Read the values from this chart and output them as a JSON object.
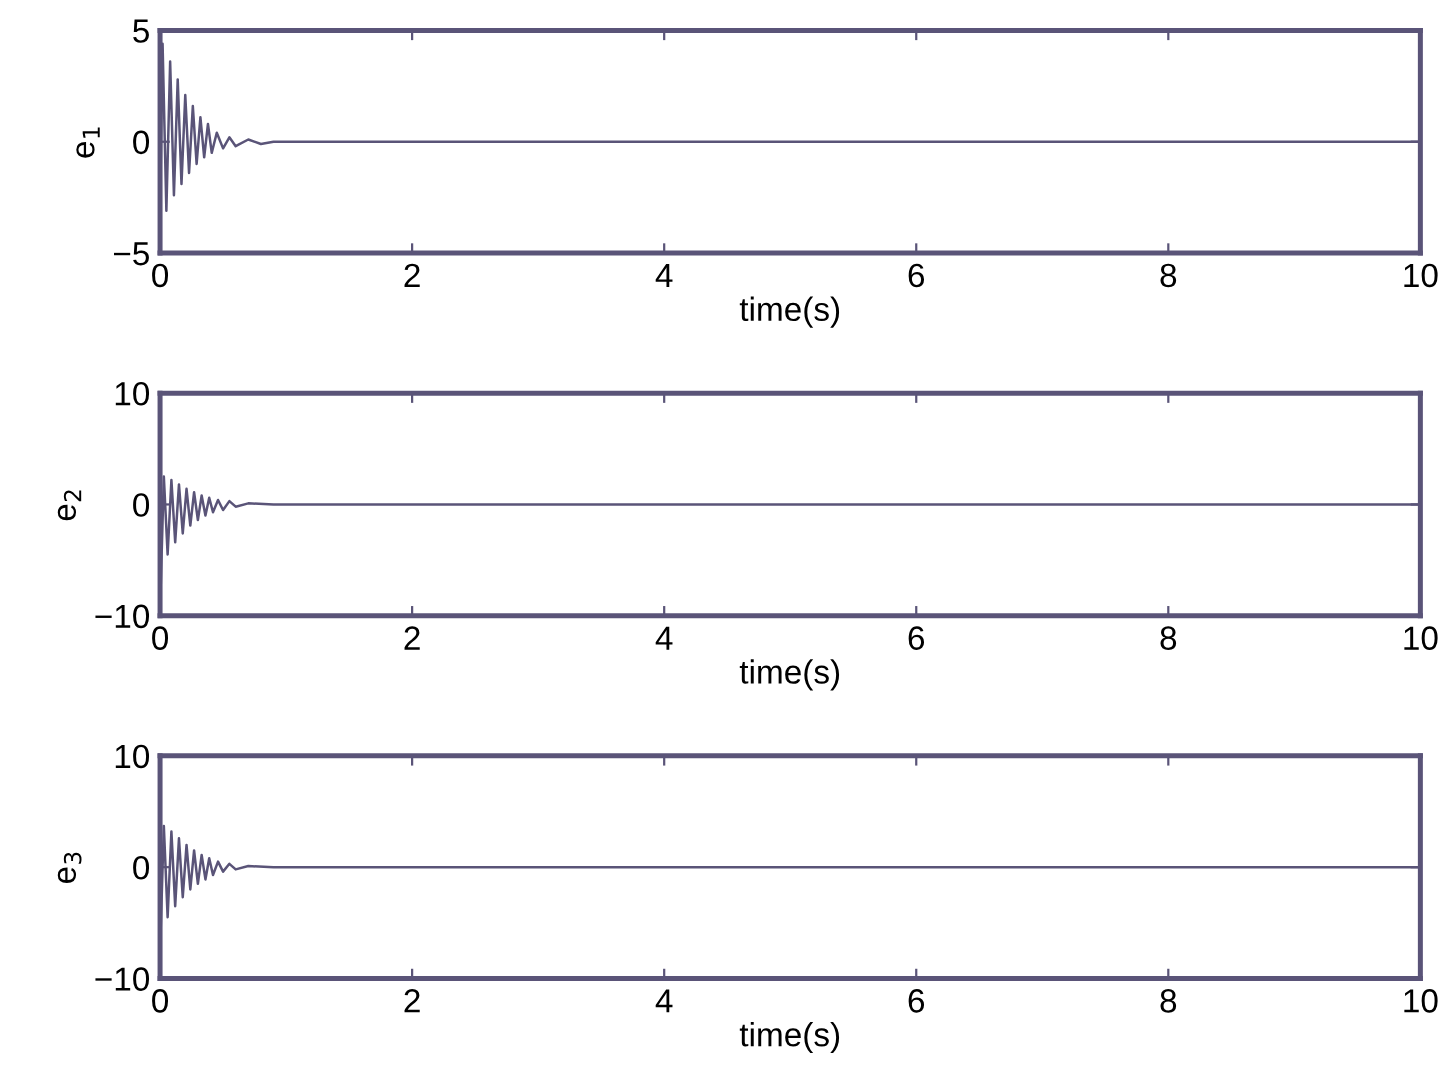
{
  "chart_data": [
    {
      "type": "line",
      "xlabel": "time(s)",
      "ylabel": "e$_{1}$",
      "xlim": [
        0,
        10
      ],
      "ylim": [
        -5,
        5
      ],
      "xticks": [
        0,
        2,
        4,
        6,
        8,
        10
      ],
      "yticks": [
        -5,
        0,
        5
      ],
      "grid": false,
      "marker": "none",
      "line_style": "solid",
      "series": [
        {
          "color": "#5a5478",
          "x": [
            0,
            0.02,
            0.05,
            0.08,
            0.11,
            0.14,
            0.17,
            0.2,
            0.23,
            0.26,
            0.29,
            0.32,
            0.35,
            0.38,
            0.41,
            0.45,
            0.5,
            0.55,
            0.6,
            0.7,
            0.8,
            0.9,
            1.0,
            1.2,
            10
          ],
          "values": [
            -3.2,
            4.4,
            -3.1,
            3.6,
            -2.4,
            2.8,
            -1.9,
            2.1,
            -1.4,
            1.6,
            -1.0,
            1.1,
            -0.7,
            0.8,
            -0.5,
            0.4,
            -0.3,
            0.2,
            -0.2,
            0.1,
            -0.1,
            0.0,
            0,
            0,
            0
          ]
        }
      ]
    },
    {
      "type": "line",
      "xlabel": "time(s)",
      "ylabel": "e$_{2}$",
      "xlim": [
        0,
        10
      ],
      "ylim": [
        -10,
        10
      ],
      "xticks": [
        0,
        2,
        4,
        6,
        8,
        10
      ],
      "yticks": [
        -10,
        0,
        10
      ],
      "grid": false,
      "marker": "none",
      "line_style": "solid",
      "series": [
        {
          "color": "#5a5478",
          "x": [
            0,
            0.03,
            0.06,
            0.09,
            0.12,
            0.15,
            0.18,
            0.21,
            0.24,
            0.27,
            0.3,
            0.33,
            0.36,
            0.39,
            0.42,
            0.46,
            0.5,
            0.55,
            0.6,
            0.7,
            0.9,
            10
          ],
          "values": [
            -9.5,
            2.5,
            -4.5,
            2.2,
            -3.4,
            1.8,
            -2.6,
            1.4,
            -1.9,
            1.1,
            -1.4,
            0.8,
            -1.0,
            0.6,
            -0.7,
            0.4,
            -0.5,
            0.3,
            -0.2,
            0.1,
            0,
            0
          ]
        }
      ]
    },
    {
      "type": "line",
      "xlabel": "time(s)",
      "ylabel": "e$_{3}$",
      "xlim": [
        0,
        10
      ],
      "ylim": [
        -10,
        10
      ],
      "xticks": [
        0,
        2,
        4,
        6,
        8,
        10
      ],
      "yticks": [
        -10,
        0,
        10
      ],
      "grid": false,
      "marker": "none",
      "line_style": "solid",
      "series": [
        {
          "color": "#5a5478",
          "x": [
            0,
            0.03,
            0.06,
            0.09,
            0.12,
            0.15,
            0.18,
            0.21,
            0.24,
            0.27,
            0.3,
            0.33,
            0.36,
            0.39,
            0.42,
            0.46,
            0.5,
            0.55,
            0.6,
            0.7,
            0.9,
            10
          ],
          "values": [
            -7.5,
            3.7,
            -4.5,
            3.2,
            -3.5,
            2.6,
            -2.7,
            2.0,
            -2.0,
            1.5,
            -1.5,
            1.1,
            -1.1,
            0.8,
            -0.7,
            0.5,
            -0.4,
            0.3,
            -0.2,
            0.1,
            0,
            0
          ]
        }
      ]
    }
  ]
}
